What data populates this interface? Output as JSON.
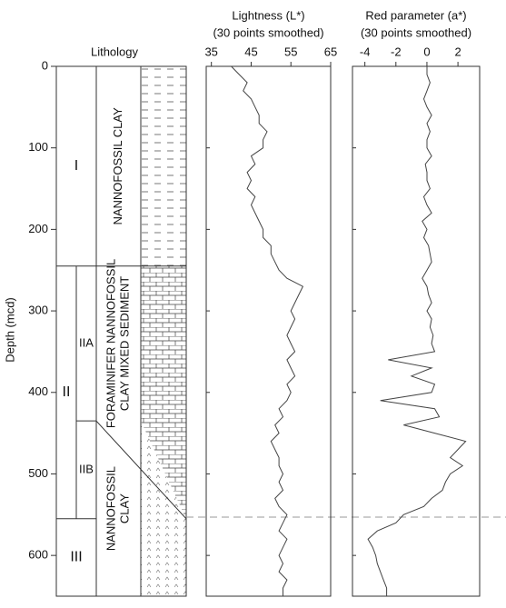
{
  "chart_data": {
    "type": "depth-log",
    "y_label": "Depth (mcd)",
    "ylim": [
      0,
      650
    ],
    "yticks": [
      0,
      100,
      200,
      300,
      400,
      500,
      600
    ],
    "depth": [
      0,
      10,
      20,
      30,
      40,
      50,
      60,
      70,
      80,
      90,
      100,
      110,
      120,
      130,
      140,
      150,
      160,
      170,
      180,
      190,
      200,
      210,
      220,
      230,
      240,
      250,
      260,
      270,
      280,
      290,
      300,
      310,
      320,
      330,
      340,
      350,
      360,
      370,
      380,
      390,
      400,
      410,
      420,
      430,
      440,
      450,
      460,
      470,
      480,
      490,
      500,
      510,
      520,
      530,
      540,
      550,
      560,
      570,
      580,
      590,
      600,
      610,
      620,
      630,
      640,
      650
    ],
    "lithology": {
      "title": "Lithology",
      "units": [
        {
          "label": "I",
          "top": 0,
          "bottom": 245
        },
        {
          "label": "II",
          "top": 245,
          "bottom": 555,
          "subunits": [
            {
              "label": "IIA",
              "top": 245,
              "bottom": 435
            },
            {
              "label": "IIB",
              "top": 435,
              "bottom": 555
            }
          ]
        },
        {
          "label": "III",
          "top": 555,
          "bottom": 650
        }
      ],
      "descriptions": [
        {
          "lines": [
            "NANNOFOSSIL CLAY"
          ],
          "top": 0,
          "bottom": 245
        },
        {
          "lines": [
            "FORAMINIFER NANNOFOSSIL",
            "CLAY MIXED SEDIMENT"
          ],
          "top": 245,
          "bottom": 435
        },
        {
          "lines": [
            "NANNOFOSSIL",
            "CLAY"
          ],
          "top": 435,
          "bottom": 650
        }
      ]
    },
    "dashed_depth": 553,
    "panels": [
      {
        "title": "Lightness (L*)",
        "subtitle": "(30 points smoothed)",
        "xlim": [
          33.7,
          65
        ],
        "xticks": [
          35,
          45,
          55,
          65
        ],
        "color": "#444444",
        "values": [
          40,
          42,
          44,
          43,
          45,
          46,
          47,
          47,
          49,
          48,
          48,
          45,
          46,
          44,
          45,
          44,
          46,
          45,
          46,
          47,
          48,
          48,
          50,
          50,
          51,
          52,
          54,
          58,
          57,
          56,
          55,
          56,
          55,
          54,
          55,
          56,
          54,
          55,
          56,
          54,
          55,
          54,
          52,
          53,
          51,
          52,
          50,
          51,
          52,
          52,
          53,
          52,
          53,
          51,
          52,
          54,
          53,
          52,
          54,
          53,
          52,
          53,
          52,
          54,
          53,
          53
        ]
      },
      {
        "title": "Red parameter (a*)",
        "subtitle": "(30 points smoothed)",
        "xlim": [
          -4.8,
          3.4
        ],
        "xticks": [
          -4,
          -2,
          0,
          2
        ],
        "color": "#444444",
        "values": [
          0,
          0,
          0.2,
          0,
          -0.2,
          0,
          0.3,
          0,
          0.2,
          0,
          0,
          0.3,
          -0.1,
          0,
          0,
          0.2,
          -0.2,
          0,
          0.3,
          -0.3,
          0,
          -0.2,
          0.1,
          0.2,
          0.3,
          0,
          -0.3,
          0,
          0.1,
          0.3,
          0,
          0.3,
          0.2,
          0.4,
          0.3,
          0.5,
          -2.5,
          0.3,
          -1,
          0.5,
          0.3,
          -3,
          0.5,
          0.8,
          -1.5,
          0.5,
          2.5,
          2.0,
          1.5,
          2.3,
          1.5,
          1.2,
          1.0,
          0.3,
          -0.2,
          -1.5,
          -2.0,
          -3.2,
          -3.8,
          -3.5,
          -3.3,
          -3.2,
          -3.0,
          -2.8,
          -2.6,
          -2.6
        ]
      }
    ]
  }
}
